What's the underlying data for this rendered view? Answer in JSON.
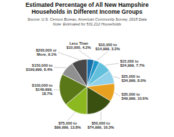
{
  "chart_data": {
    "type": "pie",
    "title": "Estimated Percentage of All New Hampshire\nHouseholds in Different Income Groups",
    "subtitle": "Source: U.S. Census Bureau, American Community Survey, 2018 Data\nNote: Estimated for 531,212 Households",
    "categories": [
      "Less Than\n$10,000, 4.2%",
      "$10,000 to\n$14,999, 3.2%",
      "$15,000 to\n$24,999, 7.7%",
      "$25,000 to\n$34,999, 8.0%",
      "$35,000 to\n$49,999, 10.6%",
      "$50,000 to\n$74,999, 16.3%",
      "$75,000 to\n$99,999, 13.8%",
      "$100,000 to\n$149,999,\n18.7%",
      "$150,000 to\n$199,999, 8.4%",
      "$200,000 or\nMore, 9.1%"
    ],
    "values": [
      4.2,
      3.2,
      7.7,
      8.0,
      10.6,
      16.3,
      13.8,
      18.7,
      8.4,
      9.1
    ],
    "colors": [
      "#1A6FA8",
      "#2196C8",
      "#62C0DC",
      "#90D0E8",
      "#E8A020",
      "#3A5010",
      "#8CB820",
      "#5A7818",
      "#909090",
      "#484848"
    ]
  }
}
